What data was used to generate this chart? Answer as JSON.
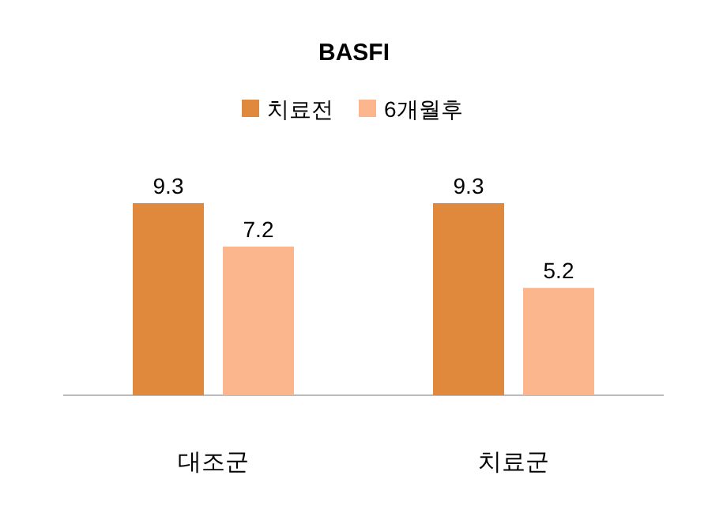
{
  "chart_data": {
    "type": "bar",
    "title": "BASFI",
    "categories": [
      "대조군",
      "치료군"
    ],
    "series": [
      {
        "name": "치료전",
        "color": "#e0883c",
        "values": [
          9.3,
          9.3
        ]
      },
      {
        "name": "6개월후",
        "color": "#fbb68e",
        "values": [
          7.2,
          5.2
        ]
      }
    ],
    "data_labels": true,
    "legend": "top"
  }
}
